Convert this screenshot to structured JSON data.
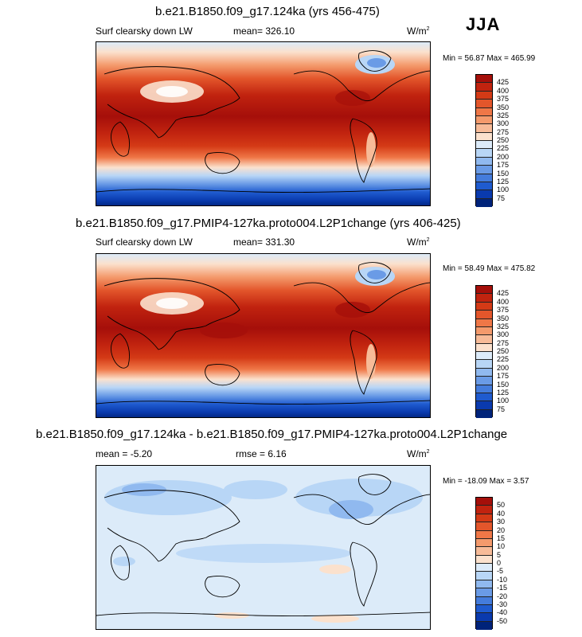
{
  "season": "JJA",
  "panels": [
    {
      "title": "b.e21.B1850.f09_g17.124ka (yrs 456-475)",
      "variable": "Surf clearsky down LW",
      "mean_label": "mean=",
      "mean_value": "326.10",
      "units": "W/m",
      "units_exp": "2",
      "minmax": "Min = 56.87 Max = 465.99",
      "colorbar_labels": [
        "425",
        "400",
        "375",
        "350",
        "325",
        "300",
        "275",
        "250",
        "225",
        "200",
        "175",
        "150",
        "125",
        "100",
        "75"
      ],
      "colorbar_colors": [
        "#a50f0a",
        "#c1230f",
        "#d43a16",
        "#e3562b",
        "#ef7747",
        "#f49a6c",
        "#f7bb98",
        "#fbe1cd",
        "#dcebf9",
        "#b8d6f6",
        "#90b9ef",
        "#6a9be6",
        "#447cdc",
        "#1f5bcf",
        "#0a3aae",
        "#00237a"
      ]
    },
    {
      "title": "b.e21.B1850.f09_g17.PMIP4-127ka.proto004.L2P1change (yrs 406-425)",
      "variable": "Surf clearsky down LW",
      "mean_label": "mean=",
      "mean_value": "331.30",
      "units": "W/m",
      "units_exp": "2",
      "minmax": "Min = 58.49 Max = 475.82",
      "colorbar_labels": [
        "425",
        "400",
        "375",
        "350",
        "325",
        "300",
        "275",
        "250",
        "225",
        "200",
        "175",
        "150",
        "125",
        "100",
        "75"
      ],
      "colorbar_colors": [
        "#a50f0a",
        "#c1230f",
        "#d43a16",
        "#e3562b",
        "#ef7747",
        "#f49a6c",
        "#f7bb98",
        "#fbe1cd",
        "#dcebf9",
        "#b8d6f6",
        "#90b9ef",
        "#6a9be6",
        "#447cdc",
        "#1f5bcf",
        "#0a3aae",
        "#00237a"
      ]
    },
    {
      "title": "b.e21.B1850.f09_g17.124ka - b.e21.B1850.f09_g17.PMIP4-127ka.proto004.L2P1change",
      "mean_label": "mean =",
      "mean_value": "-5.20",
      "rmse_label": "rmse =",
      "rmse_value": "6.16",
      "units": "W/m",
      "units_exp": "2",
      "minmax": "Min = -18.09 Max =  3.57",
      "colorbar_labels": [
        "50",
        "40",
        "30",
        "20",
        "15",
        "10",
        "5",
        "0",
        "-5",
        "-10",
        "-15",
        "-20",
        "-30",
        "-40",
        "-50"
      ],
      "colorbar_colors": [
        "#a50f0a",
        "#c1230f",
        "#d43a16",
        "#e3562b",
        "#ef7747",
        "#f49a6c",
        "#f7bb98",
        "#fbe1cd",
        "#dcebf9",
        "#b8d6f6",
        "#90b9ef",
        "#6a9be6",
        "#447cdc",
        "#1f5bcf",
        "#0a3aae",
        "#00237a"
      ]
    }
  ]
}
